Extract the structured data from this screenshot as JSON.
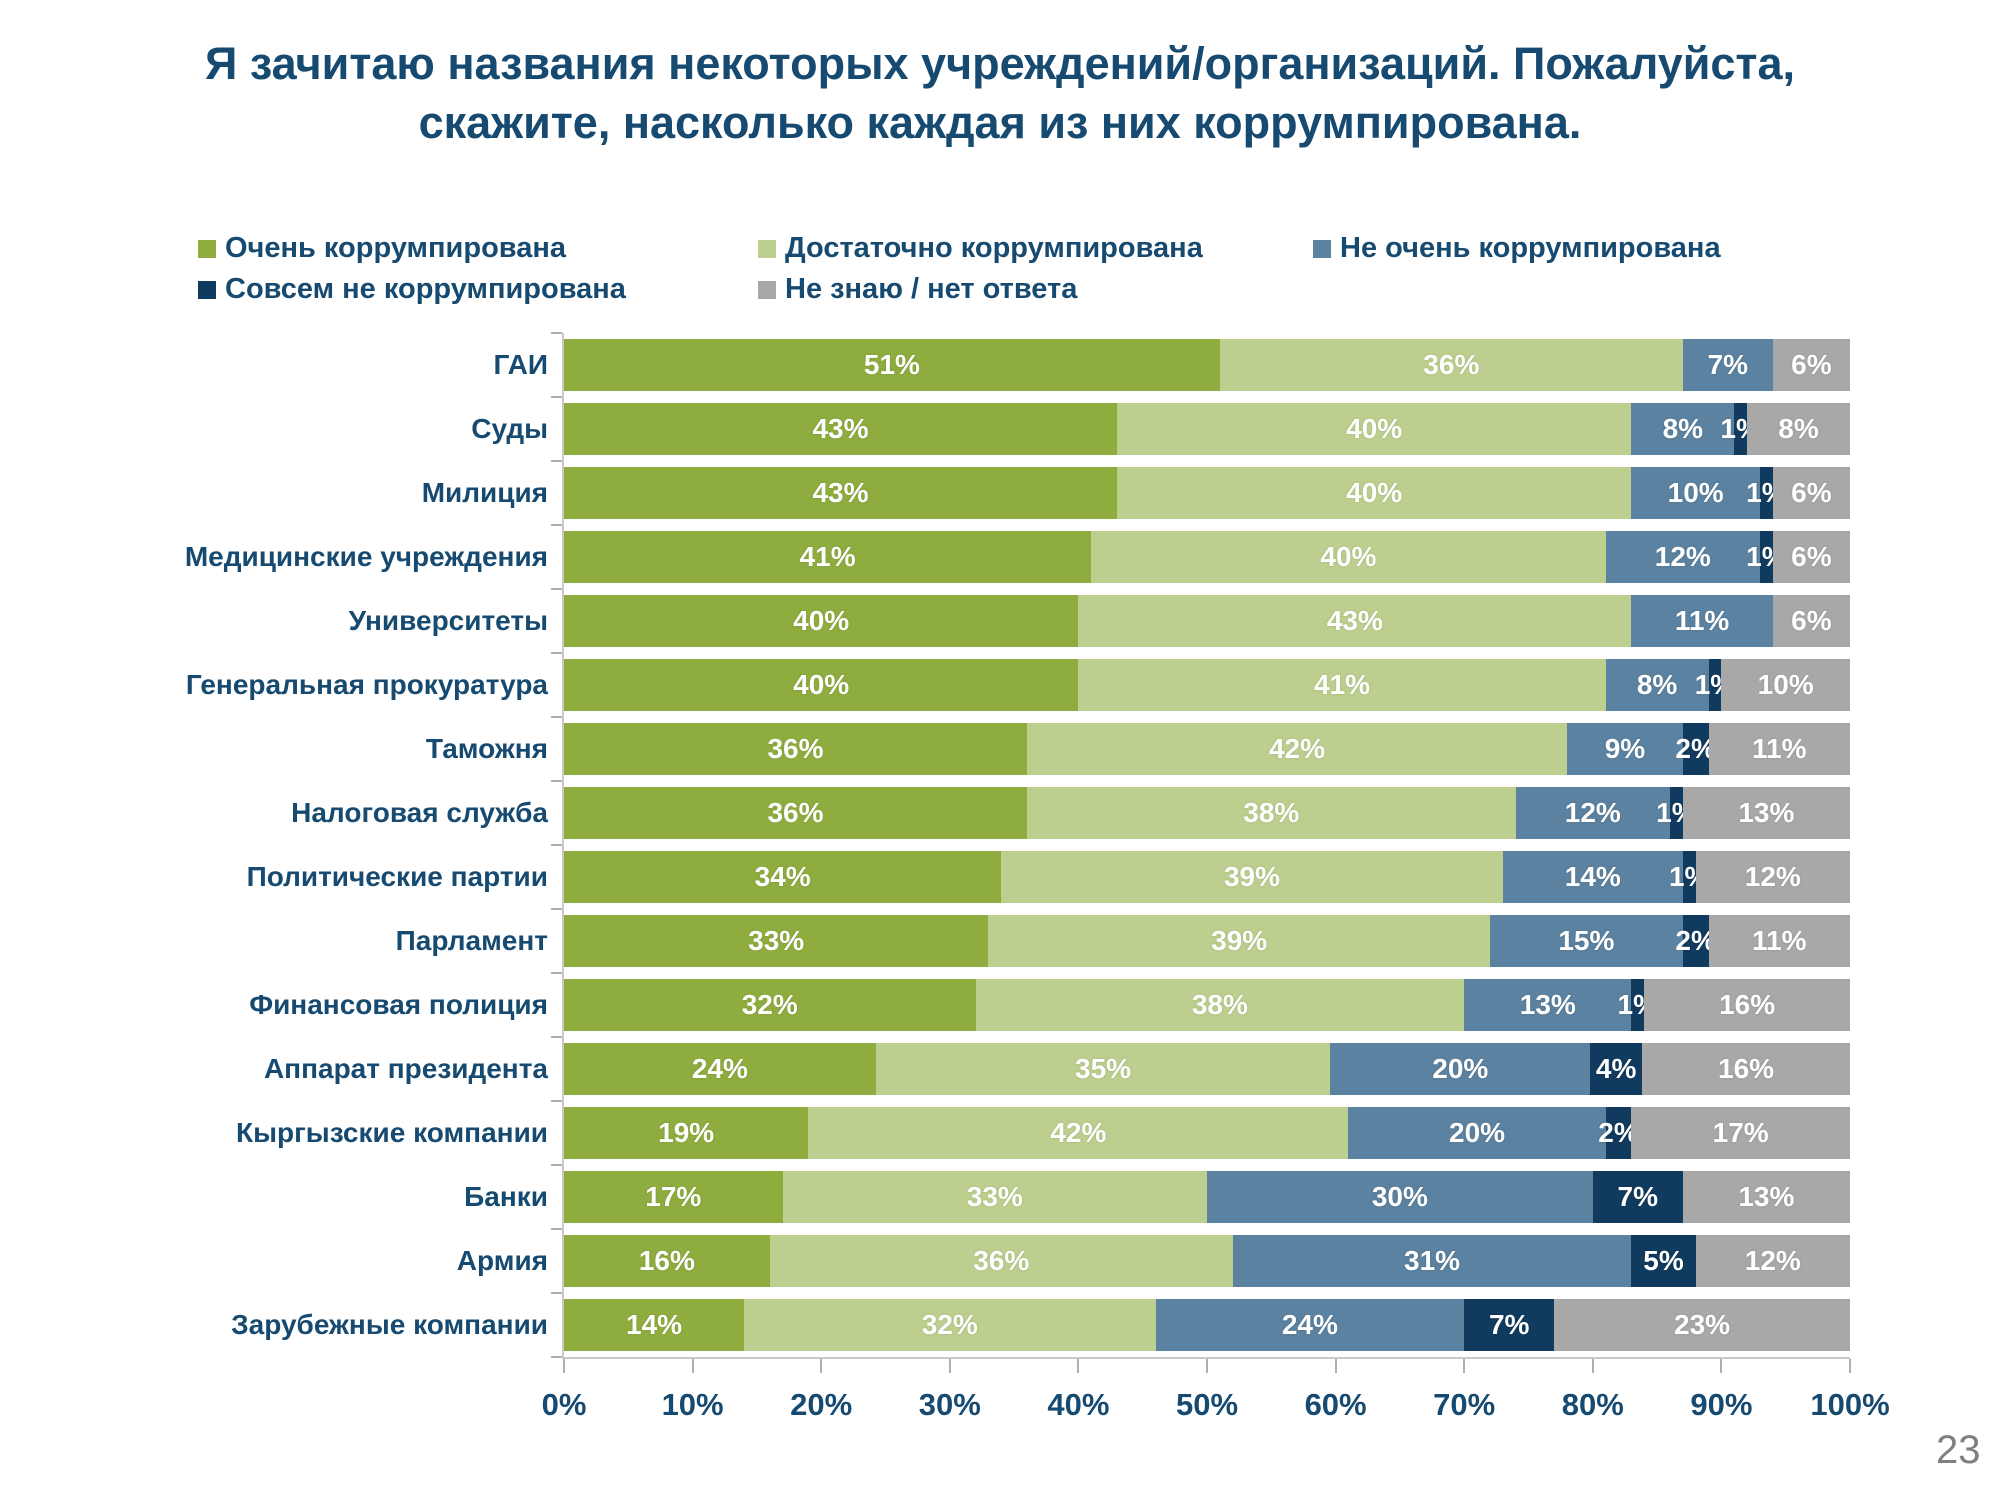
{
  "page": {
    "number": "23"
  },
  "chart_data": {
    "type": "bar",
    "stacked": true,
    "percent_stacked": true,
    "orientation": "horizontal",
    "title": "Я зачитаю названия некоторых учреждений/организаций. Пожалуйста, скажите, насколько каждая из них коррумпирована.",
    "legend_position": "top",
    "grid": false,
    "unit": "%",
    "xlim": [
      0,
      100
    ],
    "x_ticks": [
      "0%",
      "10%",
      "20%",
      "30%",
      "40%",
      "50%",
      "60%",
      "70%",
      "80%",
      "90%",
      "100%"
    ],
    "categories": [
      "ГАИ",
      "Суды",
      "Милиция",
      "Медицинские учреждения",
      "Университеты",
      "Генеральная прокуратура",
      "Таможня",
      "Налоговая служба",
      "Политические партии",
      "Парламент",
      "Финансовая полиция",
      "Аппарат президента",
      "Кыргызские компании",
      "Банки",
      "Армия",
      "Зарубежные компании"
    ],
    "series": [
      {
        "name": "Очень коррумпирована",
        "color": "#8FAD3F",
        "values": [
          51,
          43,
          43,
          41,
          40,
          40,
          36,
          36,
          34,
          33,
          32,
          24,
          19,
          17,
          16,
          14
        ]
      },
      {
        "name": "Достаточно коррумпирована",
        "color": "#BCCF8E",
        "values": [
          36,
          40,
          40,
          40,
          43,
          41,
          42,
          38,
          39,
          39,
          38,
          35,
          42,
          33,
          36,
          32
        ]
      },
      {
        "name": "Не очень коррумпирована",
        "color": "#5B82A0",
        "values": [
          7,
          8,
          10,
          12,
          11,
          8,
          9,
          12,
          14,
          15,
          13,
          20,
          20,
          30,
          31,
          24
        ]
      },
      {
        "name": "Совсем не  коррумпирована",
        "color": "#103A5E",
        "values": [
          0,
          1,
          1,
          1,
          0,
          1,
          2,
          1,
          1,
          2,
          1,
          4,
          2,
          7,
          5,
          7
        ]
      },
      {
        "name": "Не знаю / нет ответа",
        "color": "#A8A8A8",
        "values": [
          6,
          8,
          6,
          6,
          6,
          10,
          11,
          13,
          12,
          11,
          16,
          16,
          17,
          13,
          12,
          23
        ]
      }
    ]
  },
  "colors": {
    "title_text": "#174A70",
    "axis_line": "#C9C9C9",
    "page_number": "#7F7F7F",
    "segment_label": "#FFFFFF"
  }
}
